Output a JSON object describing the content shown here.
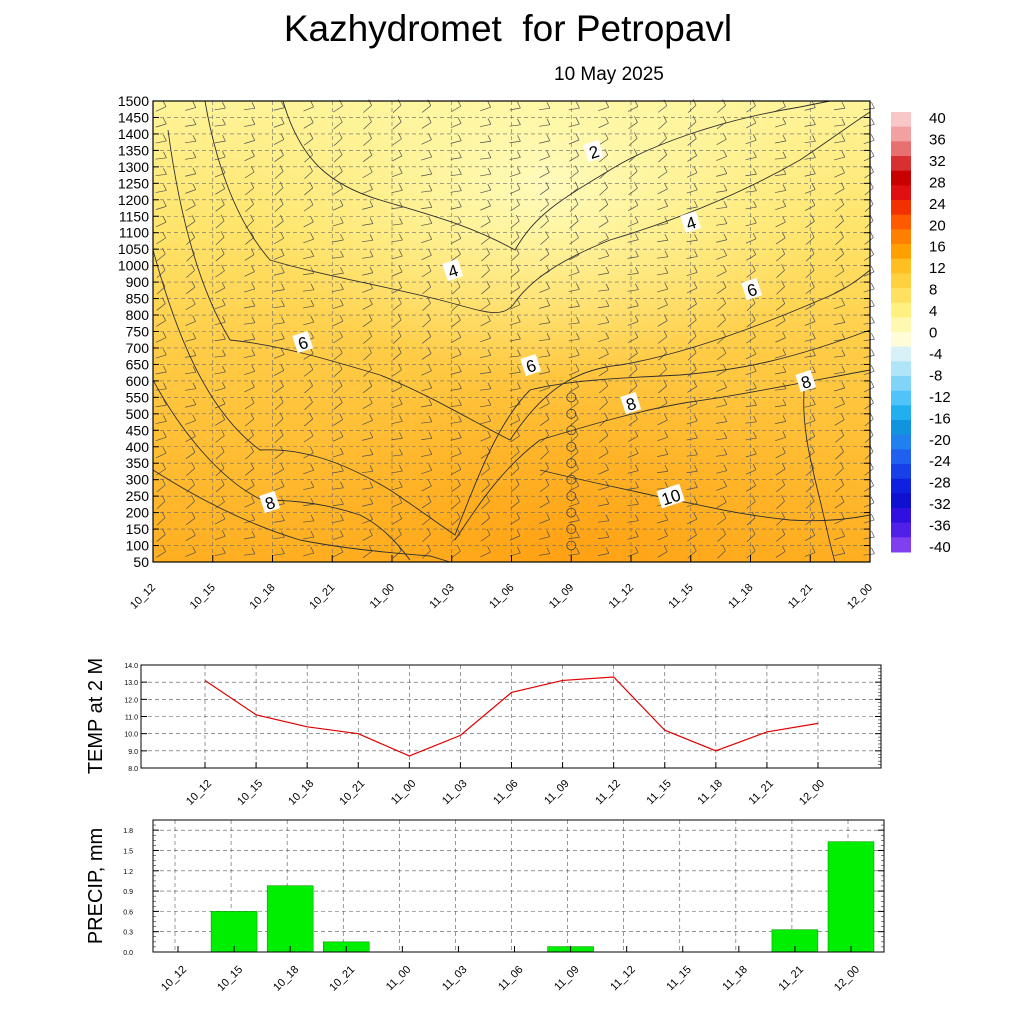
{
  "header": {
    "title": "Kazhydromet  for Petropavl",
    "date": "10 May 2025"
  },
  "time_labels": [
    "10_12",
    "10_15",
    "10_18",
    "10_21",
    "11_00",
    "11_03",
    "11_06",
    "11_09",
    "11_12",
    "11_15",
    "11_18",
    "11_21",
    "12_00"
  ],
  "chart_data": [
    {
      "type": "heatmap",
      "title": "Kazhydromet  for Petropavl",
      "subtitle": "10 May 2025",
      "x_categories": [
        "10_12",
        "10_15",
        "10_18",
        "10_21",
        "11_00",
        "11_03",
        "11_06",
        "11_09",
        "11_12",
        "11_15",
        "11_18",
        "11_21",
        "12_00"
      ],
      "y_ticks": [
        50,
        100,
        150,
        200,
        250,
        300,
        350,
        400,
        450,
        500,
        550,
        600,
        650,
        700,
        750,
        800,
        850,
        900,
        1000,
        1050,
        1100,
        1150,
        1200,
        1250,
        1300,
        1350,
        1400,
        1450,
        1500
      ],
      "colorbar": {
        "labels": [
          40,
          36,
          32,
          28,
          24,
          20,
          16,
          12,
          8,
          4,
          0,
          -4,
          -8,
          -12,
          -16,
          -20,
          -24,
          -28,
          -32,
          -36,
          -40
        ],
        "range": [
          -40,
          40
        ]
      },
      "contour_labels": [
        "2",
        "4",
        "4",
        "6",
        "6",
        "6",
        "8",
        "8",
        "8",
        "10"
      ],
      "wind_barbs": true,
      "grid": true
    },
    {
      "type": "line",
      "ylabel": "TEMP at 2 M",
      "x": [
        "10_12",
        "10_15",
        "10_18",
        "10_21",
        "11_00",
        "11_03",
        "11_06",
        "11_09",
        "11_12",
        "11_15",
        "11_18",
        "11_21",
        "12_00"
      ],
      "series": [
        {
          "values": [
            13.1,
            11.1,
            10.4,
            10.0,
            8.7,
            9.9,
            12.4,
            13.1,
            13.3,
            10.2,
            9.0,
            10.1,
            10.6
          ],
          "color": "#e00000"
        }
      ],
      "y_ticks": [
        "8.0",
        "9.0",
        "10.0",
        "11.0",
        "12.0",
        "13.0",
        "14.0"
      ],
      "ylim": [
        8.0,
        14.0
      ],
      "grid": true
    },
    {
      "type": "bar",
      "ylabel": "PRECIP, mm",
      "categories": [
        "10_12",
        "10_15",
        "10_18",
        "10_21",
        "11_00",
        "11_03",
        "11_06",
        "11_09",
        "11_12",
        "11_15",
        "11_18",
        "11_21",
        "12_00"
      ],
      "values": [
        0.0,
        0.6,
        0.98,
        0.15,
        0.0,
        0.0,
        0.0,
        0.08,
        0.0,
        0.0,
        0.0,
        0.33,
        1.63
      ],
      "y_ticks": [
        "0.0",
        "0.3",
        "0.6",
        "0.9",
        "1.2",
        "1.5",
        "1.8"
      ],
      "ylim": [
        0.0,
        1.95
      ],
      "bar_color": "#00ee00",
      "grid": true
    }
  ]
}
